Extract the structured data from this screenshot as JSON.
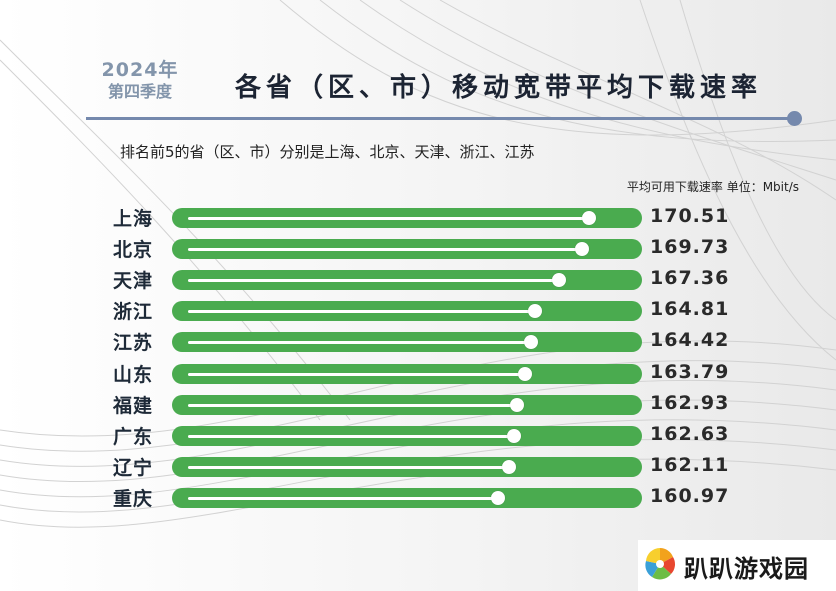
{
  "header": {
    "year": "2024年",
    "quarter": "第四季度",
    "title": "各省（区、市）移动宽带平均下载速率",
    "subtitle": "排名前5的省（区、市）分别是上海、北京、天津、浙江、江苏",
    "unit": "平均可用下载速率 单位：Mbit/s"
  },
  "colors": {
    "bar": "#4aab4f",
    "accent": "#7589ad",
    "year_text": "#8395ab"
  },
  "chart_data": {
    "type": "bar",
    "orientation": "horizontal",
    "categories": [
      "上海",
      "北京",
      "天津",
      "浙江",
      "江苏",
      "山东",
      "福建",
      "广东",
      "辽宁",
      "重庆"
    ],
    "values": [
      170.51,
      169.73,
      167.36,
      164.81,
      164.42,
      163.79,
      162.93,
      162.63,
      162.11,
      160.97
    ],
    "value_labels": [
      "170.51",
      "169.73",
      "167.36",
      "164.81",
      "164.42",
      "163.79",
      "162.93",
      "162.63",
      "162.11",
      "160.97"
    ],
    "title": "各省（区、市）移动宽带平均下载速率",
    "xlabel": "",
    "ylabel": "",
    "grid": false
  },
  "watermark": {
    "text": "趴趴游戏园",
    "icon": "pinwheel-logo-icon"
  }
}
